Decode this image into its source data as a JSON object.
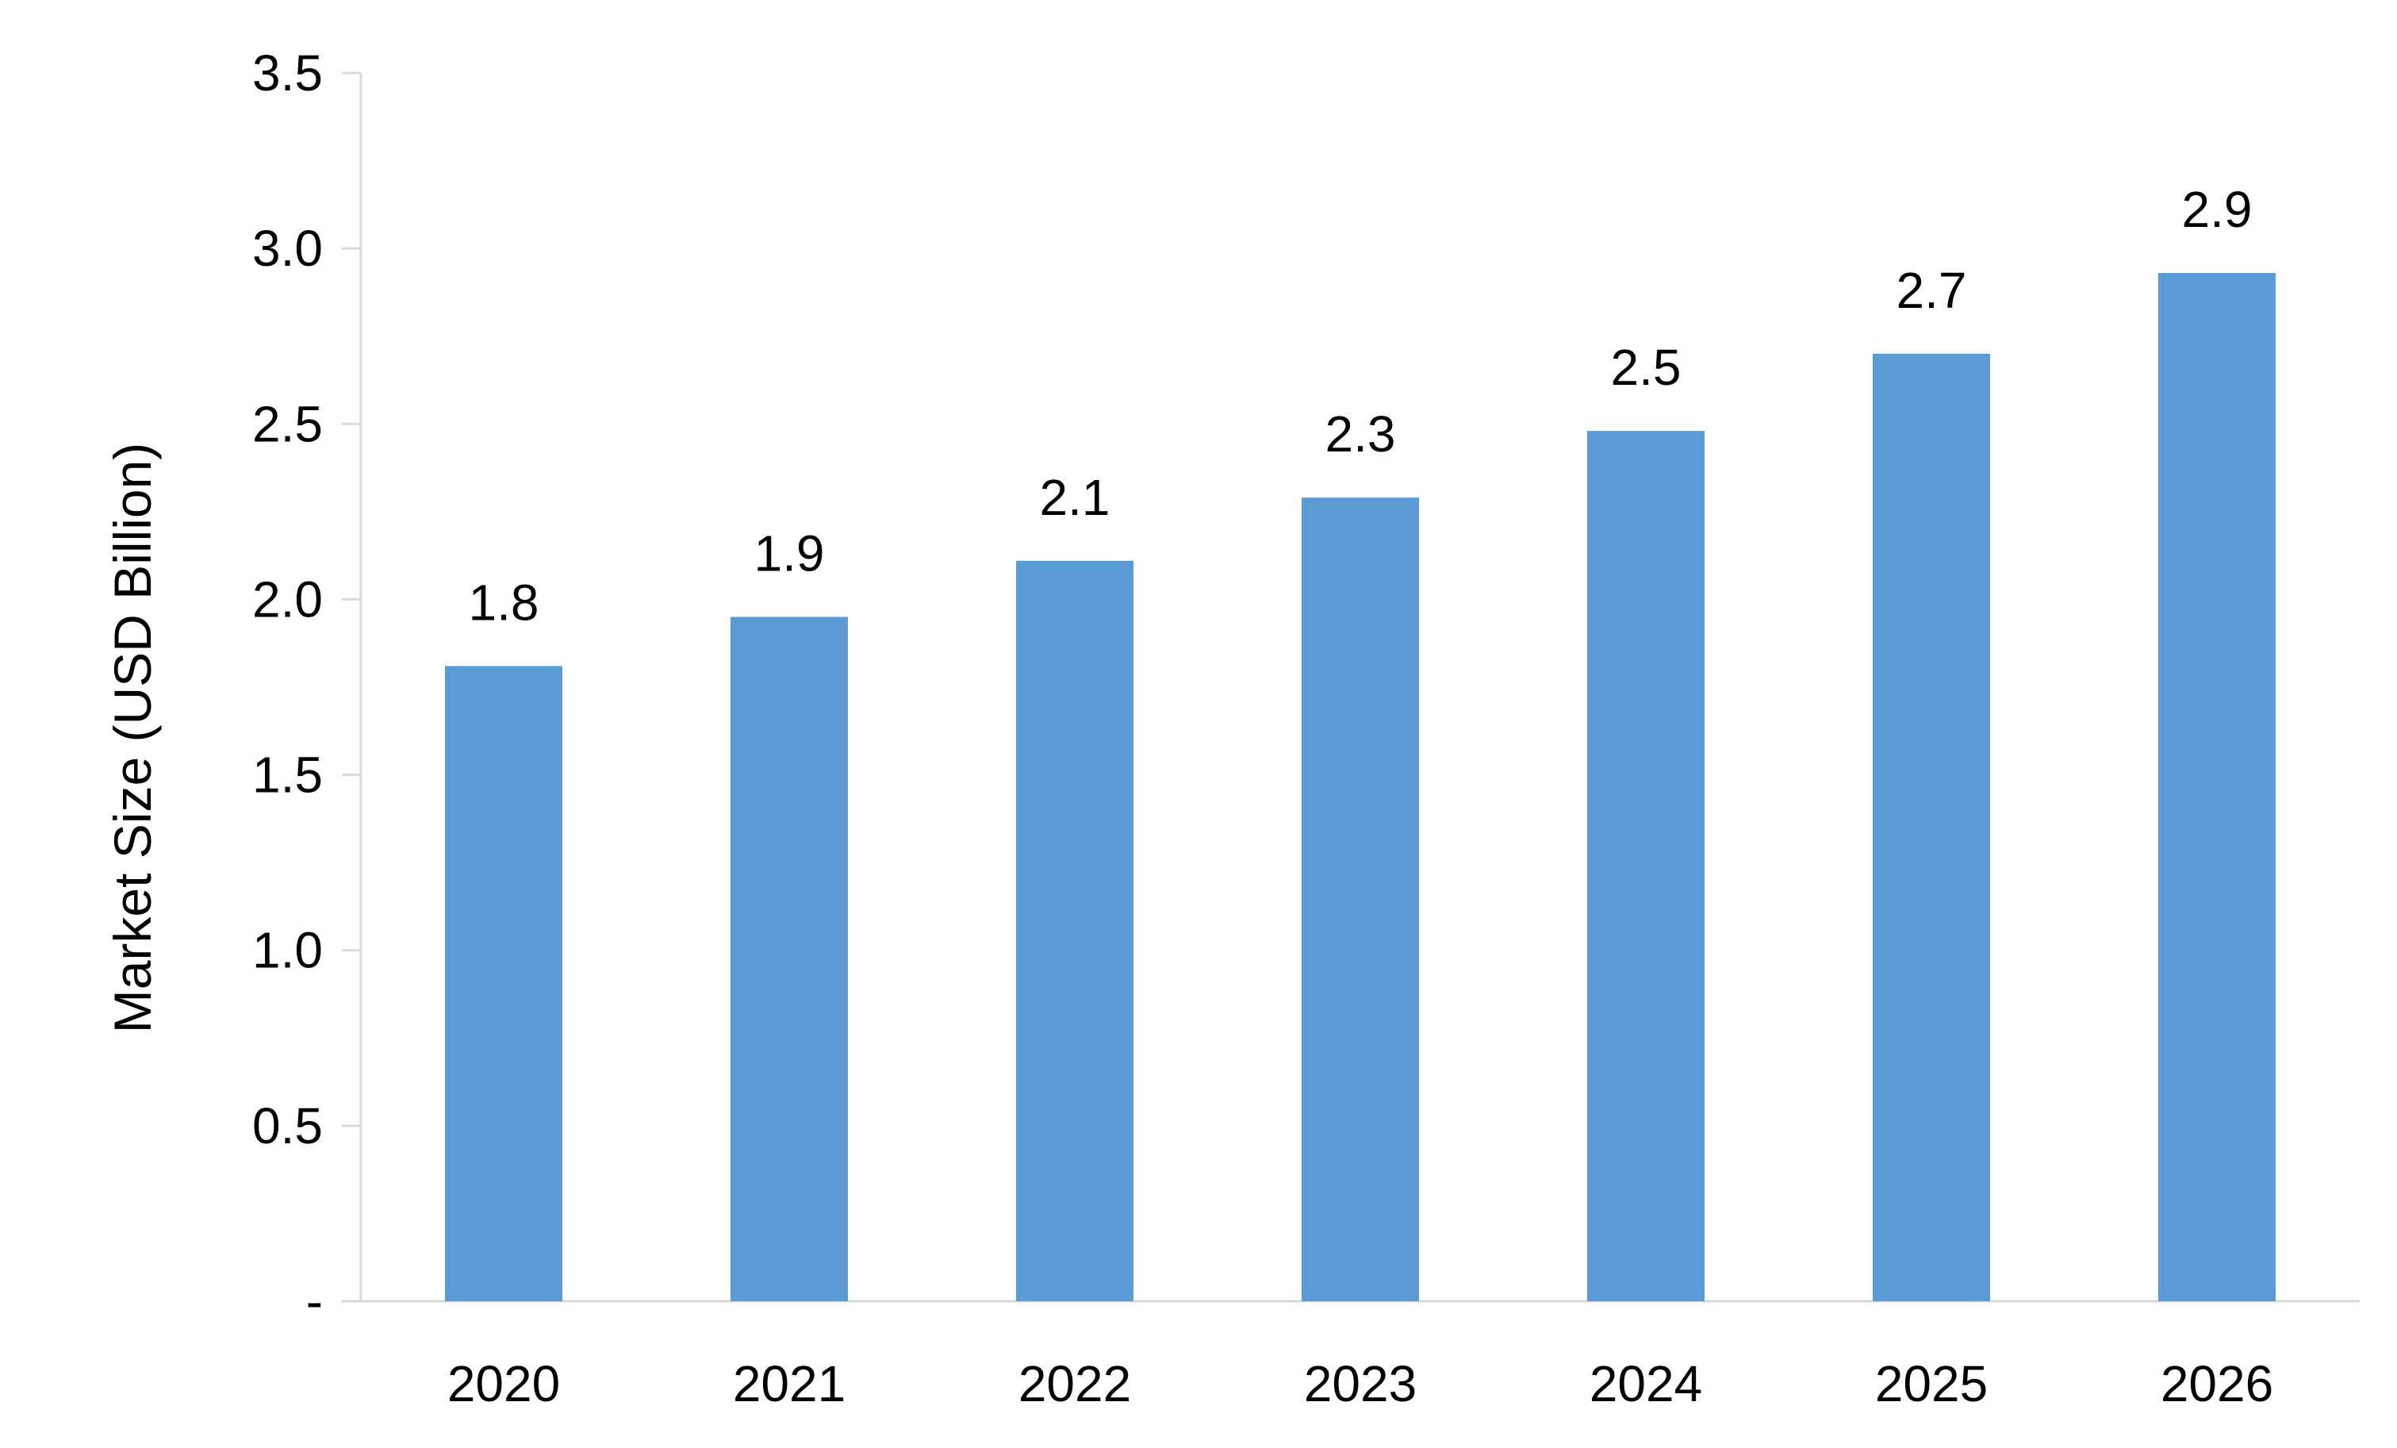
{
  "chart_data": {
    "type": "bar",
    "title": "",
    "xlabel": "",
    "ylabel": "Market Size (USD Billion)",
    "categories": [
      "2020",
      "2021",
      "2022",
      "2023",
      "2024",
      "2025",
      "2026"
    ],
    "values": [
      1.8,
      1.9,
      2.1,
      2.3,
      2.5,
      2.7,
      2.9
    ],
    "bar_heights": [
      1.81,
      1.95,
      2.11,
      2.29,
      2.48,
      2.7,
      2.93
    ],
    "data_labels": [
      "1.8",
      "1.9",
      "2.1",
      "2.3",
      "2.5",
      "2.7",
      "2.9"
    ],
    "ylim": [
      0,
      3.5
    ],
    "yticks": [
      0,
      0.5,
      1.0,
      1.5,
      2.0,
      2.5,
      3.0,
      3.5
    ],
    "ytick_labels": [
      "-",
      "0.5",
      "1.0",
      "1.5",
      "2.0",
      "2.5",
      "3.0",
      "3.5"
    ],
    "bar_color": "#5b9bd5",
    "axis_color": "#d9d9d9",
    "grid": false,
    "legend": "none"
  }
}
